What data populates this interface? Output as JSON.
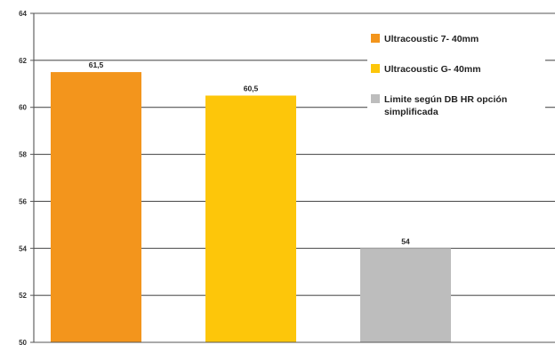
{
  "chart_data": {
    "type": "bar",
    "categories": [
      "",
      "",
      ""
    ],
    "series": [
      {
        "name": "",
        "values": [
          61.5,
          60.5,
          54
        ]
      }
    ],
    "bar_colors": [
      "#f3951c",
      "#fdc60a",
      "#bdbdbd"
    ],
    "data_labels": [
      "61,5",
      "60,5",
      "54"
    ],
    "legend": [
      {
        "label": "Ultracoustic 7- 40mm",
        "color": "#f3951c"
      },
      {
        "label": "Ultracoustic G- 40mm",
        "color": "#fdc60a"
      },
      {
        "label": "Limite según DB HR opción simplificada",
        "color": "#bdbdbd"
      }
    ],
    "title": "",
    "xlabel": "",
    "ylabel": "",
    "ylim": [
      50,
      64
    ],
    "yticks": [
      50,
      52,
      54,
      56,
      58,
      60,
      62,
      64
    ],
    "ytick_labels": [
      "50",
      "52",
      "54",
      "56",
      "58",
      "60",
      "62",
      "64"
    ],
    "grid": true,
    "legend_position": "top-right"
  }
}
